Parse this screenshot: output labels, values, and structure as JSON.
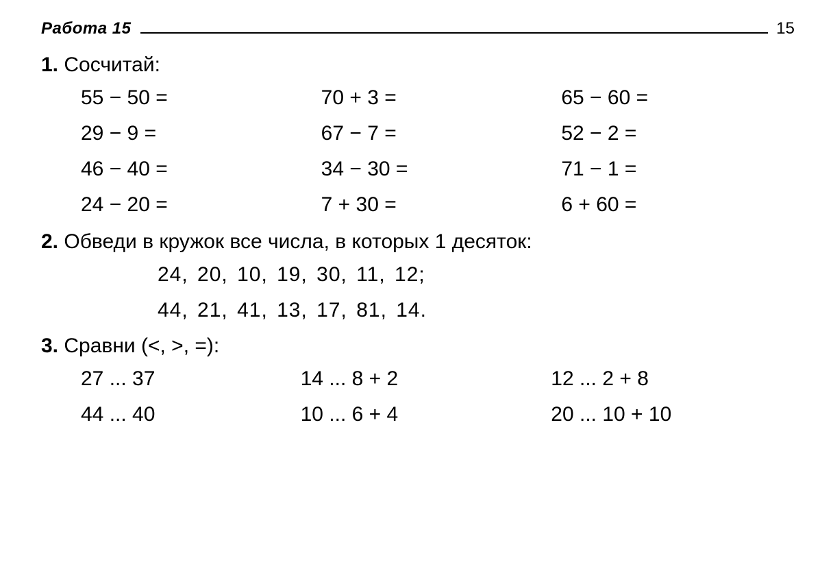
{
  "colors": {
    "text": "#000000",
    "background": "#ffffff",
    "rule": "#000000"
  },
  "typography": {
    "body_fontsize_pt": 22,
    "header_fontsize_pt": 18,
    "task_num_weight": 700
  },
  "header": {
    "title": "Работа 15",
    "page_number": "15"
  },
  "task1": {
    "number": "1.",
    "title": "Сосчитай:",
    "grid": {
      "rows": 4,
      "cols": 3,
      "cells": [
        "55 − 50 =",
        "70 + 3 =",
        "65 − 60 =",
        "29 − 9 =",
        "67 − 7 =",
        "52 − 2 =",
        "46 − 40 =",
        "34 − 30 =",
        "71 − 1 =",
        "24 − 20 =",
        "7 + 30 =",
        "6 + 60 ="
      ]
    }
  },
  "task2": {
    "number": "2.",
    "title": "Обведи в кружок все числа, в которых 1 десяток:",
    "lines": [
      "24, 20, 10, 19, 30, 11, 12;",
      "44, 21, 41, 13, 17, 81, 14."
    ]
  },
  "task3": {
    "number": "3.",
    "title": "Сравни (<, >, =):",
    "grid": {
      "rows": 2,
      "cols": 3,
      "cells": [
        "27 ... 37",
        "14 ... 8 + 2",
        "12 ... 2 + 8",
        "44 ... 40",
        "10 ... 6 + 4",
        "20 ... 10 + 10"
      ]
    }
  }
}
